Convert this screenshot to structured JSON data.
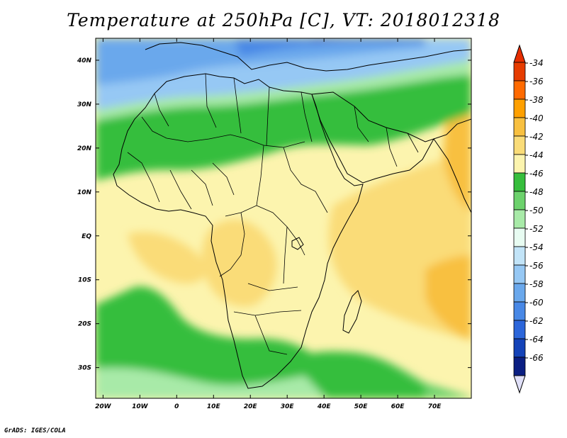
{
  "title": "Temperature at 250hPa [C], VT: 2018012318",
  "credit": "GrADS: IGES/COLA",
  "map": {
    "type": "filled-contour-map",
    "region": "Africa",
    "lon_range": [
      -22,
      80
    ],
    "lat_range": [
      -37,
      45
    ],
    "lon_ticks": [
      {
        "value": -20,
        "label": "20W"
      },
      {
        "value": -10,
        "label": "10W"
      },
      {
        "value": 0,
        "label": "0"
      },
      {
        "value": 10,
        "label": "10E"
      },
      {
        "value": 20,
        "label": "20E"
      },
      {
        "value": 30,
        "label": "30E"
      },
      {
        "value": 40,
        "label": "40E"
      },
      {
        "value": 50,
        "label": "50E"
      },
      {
        "value": 60,
        "label": "60E"
      },
      {
        "value": 70,
        "label": "70E"
      }
    ],
    "lat_ticks": [
      {
        "value": 40,
        "label": "40N"
      },
      {
        "value": 30,
        "label": "30N"
      },
      {
        "value": 20,
        "label": "20N"
      },
      {
        "value": 10,
        "label": "10N"
      },
      {
        "value": 0,
        "label": "EQ"
      },
      {
        "value": -10,
        "label": "10S"
      },
      {
        "value": -20,
        "label": "20S"
      },
      {
        "value": -30,
        "label": "30S"
      }
    ]
  },
  "colorbar": {
    "levels": [
      "-34",
      "-36",
      "-38",
      "-40",
      "-42",
      "-44",
      "-46",
      "-48",
      "-50",
      "-52",
      "-54",
      "-56",
      "-58",
      "-60",
      "-62",
      "-64",
      "-66"
    ],
    "colors": [
      "#e63c00",
      "#ff6a00",
      "#ffa000",
      "#f8c040",
      "#fadc78",
      "#fcf4ae",
      "#36be3c",
      "#6cd26c",
      "#a8eaa8",
      "#e8fcf2",
      "#c2e4f8",
      "#96c8f4",
      "#6aa8ec",
      "#4888e6",
      "#2c66da",
      "#1443b8",
      "#0a1e82"
    ],
    "top_arrow_color": "#e62d00",
    "bottom_arrow_color": "#e0e0f8"
  }
}
